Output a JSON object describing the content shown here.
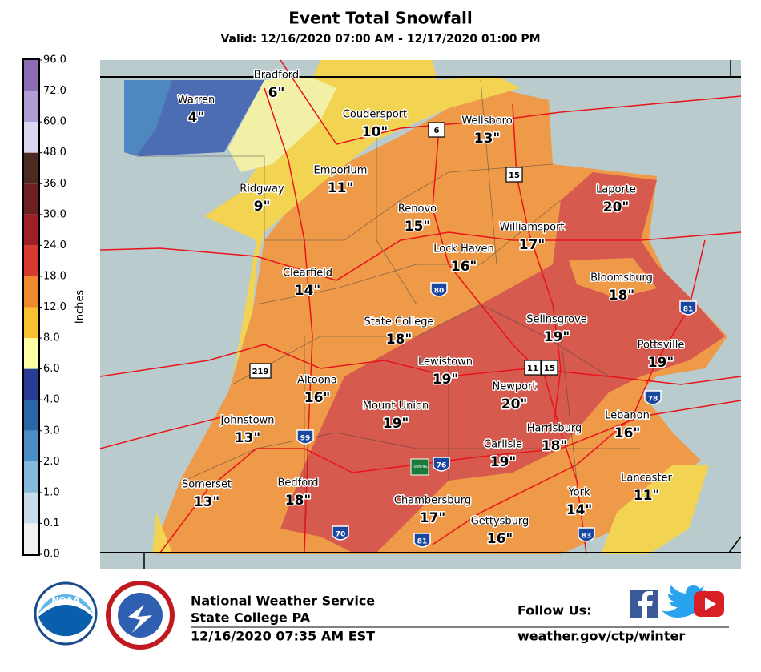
{
  "header": {
    "title": "Event Total Snowfall",
    "valid": "Valid: 12/16/2020 07:00 AM - 12/17/2020 01:00 PM"
  },
  "legend": {
    "unit": "Inches",
    "ticks": [
      "96.0",
      "72.0",
      "60.0",
      "48.0",
      "36.0",
      "30.0",
      "24.0",
      "18.0",
      "12.0",
      "8.0",
      "6.0",
      "4.0",
      "3.0",
      "2.0",
      "1.0",
      "0.1",
      "0.0"
    ]
  },
  "cities": [
    {
      "name": "Bradford",
      "amount": "6\""
    },
    {
      "name": "Warren",
      "amount": "4\""
    },
    {
      "name": "Coudersport",
      "amount": "10\""
    },
    {
      "name": "Wellsboro",
      "amount": "13\""
    },
    {
      "name": "Emporium",
      "amount": "11\""
    },
    {
      "name": "Ridgway",
      "amount": "9\""
    },
    {
      "name": "Laporte",
      "amount": "20\""
    },
    {
      "name": "Renovo",
      "amount": "15\""
    },
    {
      "name": "Williamsport",
      "amount": "17\""
    },
    {
      "name": "Lock Haven",
      "amount": "16\""
    },
    {
      "name": "Clearfield",
      "amount": "14\""
    },
    {
      "name": "Bloomsburg",
      "amount": "18\""
    },
    {
      "name": "State College",
      "amount": "18\""
    },
    {
      "name": "Selinsgrove",
      "amount": "19\""
    },
    {
      "name": "Pottsville",
      "amount": "19\""
    },
    {
      "name": "Lewistown",
      "amount": "19\""
    },
    {
      "name": "Newport",
      "amount": "20\""
    },
    {
      "name": "Altoona",
      "amount": "16\""
    },
    {
      "name": "Mount Union",
      "amount": "19\""
    },
    {
      "name": "Lebanon",
      "amount": "16\""
    },
    {
      "name": "Johnstown",
      "amount": "13\""
    },
    {
      "name": "Harrisburg",
      "amount": "18\""
    },
    {
      "name": "Carlisle",
      "amount": "19\""
    },
    {
      "name": "Lancaster",
      "amount": "11\""
    },
    {
      "name": "Somerset",
      "amount": "13\""
    },
    {
      "name": "Bedford",
      "amount": "18\""
    },
    {
      "name": "Chambersburg",
      "amount": "17\""
    },
    {
      "name": "York",
      "amount": "14\""
    },
    {
      "name": "Gettysburg",
      "amount": "16\""
    }
  ],
  "highways": [
    "6",
    "15",
    "80",
    "81",
    "219",
    "11",
    "15",
    "78",
    "99",
    "76",
    "81",
    "70",
    "83",
    "TURNPIKE"
  ],
  "footer": {
    "logo": "NOAA",
    "org": "National Weather Service",
    "office": "State College PA",
    "timestamp": "12/16/2020 07:35 AM EST",
    "follow": "Follow Us:",
    "url": "weather.gov/ctp/winter"
  }
}
